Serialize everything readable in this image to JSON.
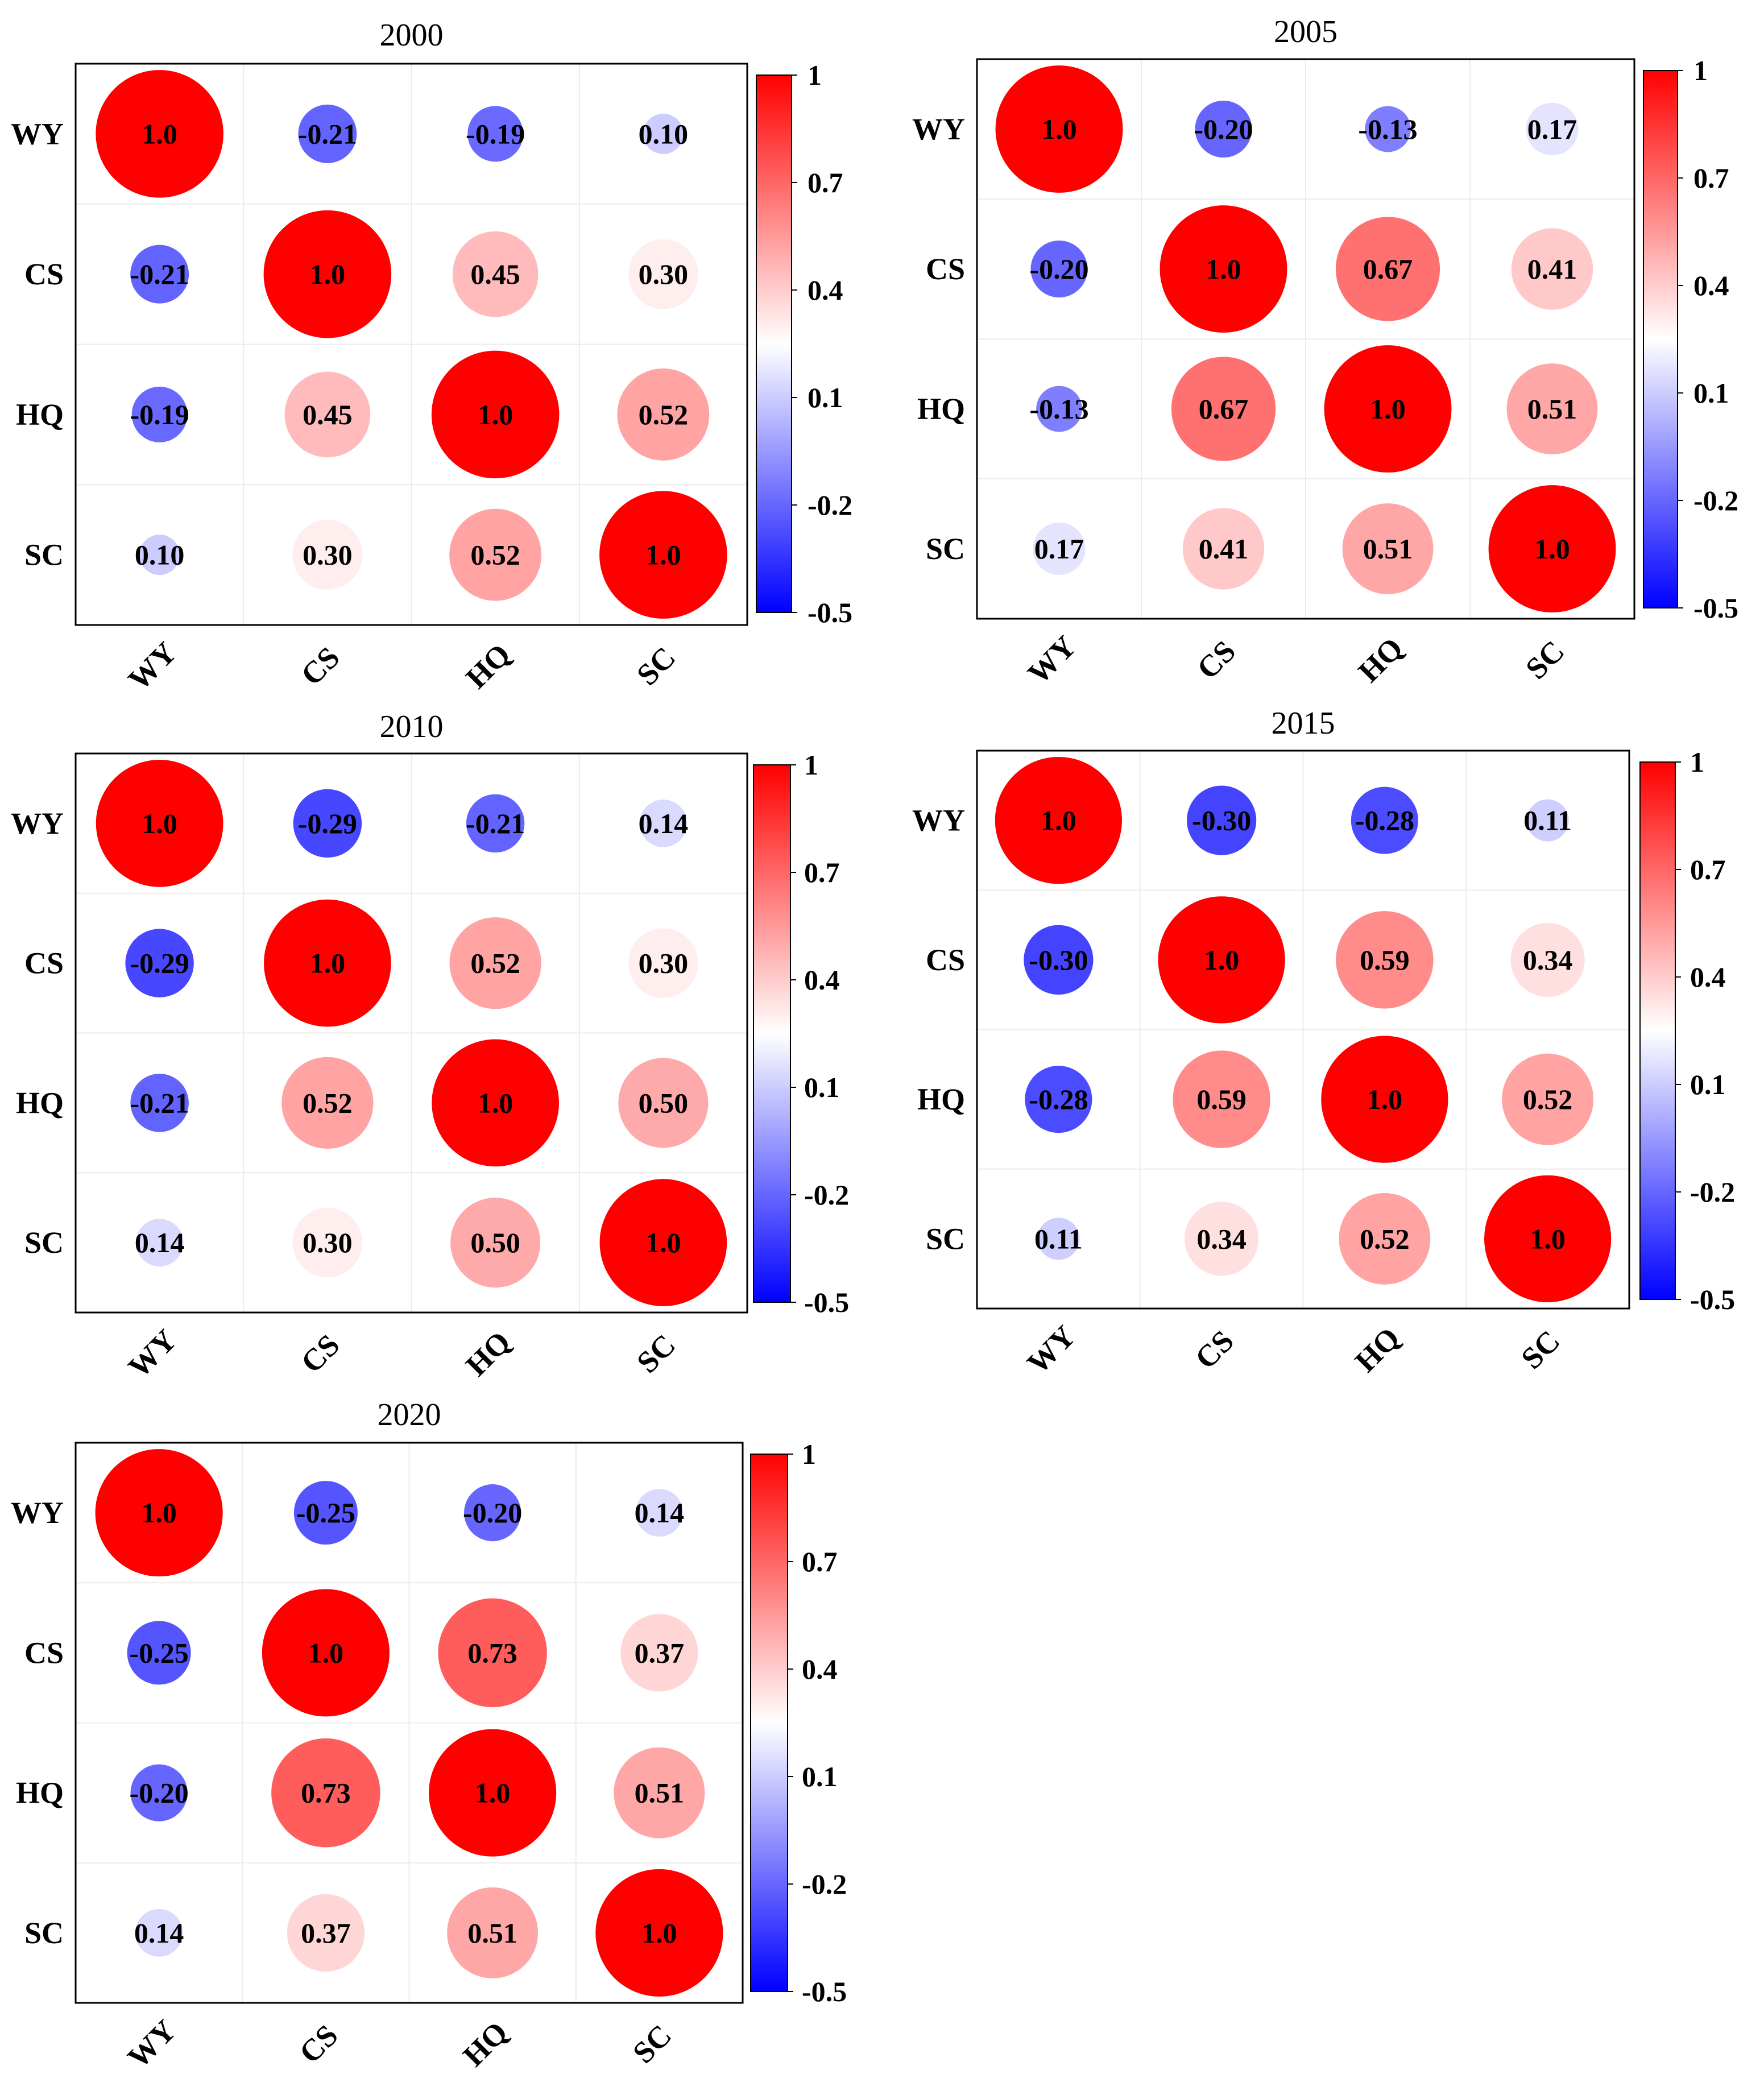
{
  "variables": [
    "WY",
    "CS",
    "HQ",
    "SC"
  ],
  "colorbar": {
    "range": [
      -0.5,
      1
    ],
    "ticks": [
      "1",
      "0.7",
      "0.4",
      "0.1",
      "-0.2",
      "-0.5"
    ],
    "colors": {
      "low": "#0000ff",
      "mid": "#ffffff",
      "high": "#ff0000"
    }
  },
  "chart_data": [
    {
      "type": "heatmap",
      "title": "2000",
      "rows": [
        "WY",
        "CS",
        "HQ",
        "SC"
      ],
      "columns": [
        "WY",
        "CS",
        "HQ",
        "SC"
      ],
      "values": [
        [
          1.0,
          -0.21,
          -0.19,
          0.1
        ],
        [
          -0.21,
          1.0,
          0.45,
          0.3
        ],
        [
          -0.19,
          0.45,
          1.0,
          0.52
        ],
        [
          0.1,
          0.3,
          0.52,
          1.0
        ]
      ],
      "labels": [
        [
          "1.0",
          "-0.21",
          "-0.19",
          "0.10"
        ],
        [
          "-0.21",
          "1.0",
          "0.45",
          "0.30"
        ],
        [
          "-0.19",
          "0.45",
          "1.0",
          "0.52"
        ],
        [
          "0.10",
          "0.30",
          "0.52",
          "1.0"
        ]
      ]
    },
    {
      "type": "heatmap",
      "title": "2005",
      "rows": [
        "WY",
        "CS",
        "HQ",
        "SC"
      ],
      "columns": [
        "WY",
        "CS",
        "HQ",
        "SC"
      ],
      "values": [
        [
          1.0,
          -0.2,
          -0.13,
          0.17
        ],
        [
          -0.2,
          1.0,
          0.67,
          0.41
        ],
        [
          -0.13,
          0.67,
          1.0,
          0.51
        ],
        [
          0.17,
          0.41,
          0.51,
          1.0
        ]
      ],
      "labels": [
        [
          "1.0",
          "-0.20",
          "-0.13",
          "0.17"
        ],
        [
          "-0.20",
          "1.0",
          "0.67",
          "0.41"
        ],
        [
          "-0.13",
          "0.67",
          "1.0",
          "0.51"
        ],
        [
          "0.17",
          "0.41",
          "0.51",
          "1.0"
        ]
      ]
    },
    {
      "type": "heatmap",
      "title": "2010",
      "rows": [
        "WY",
        "CS",
        "HQ",
        "SC"
      ],
      "columns": [
        "WY",
        "CS",
        "HQ",
        "SC"
      ],
      "values": [
        [
          1.0,
          -0.29,
          -0.21,
          0.14
        ],
        [
          -0.29,
          1.0,
          0.52,
          0.3
        ],
        [
          -0.21,
          0.52,
          1.0,
          0.5
        ],
        [
          0.14,
          0.3,
          0.5,
          1.0
        ]
      ],
      "labels": [
        [
          "1.0",
          "-0.29",
          "-0.21",
          "0.14"
        ],
        [
          "-0.29",
          "1.0",
          "0.52",
          "0.30"
        ],
        [
          "-0.21",
          "0.52",
          "1.0",
          "0.50"
        ],
        [
          "0.14",
          "0.30",
          "0.50",
          "1.0"
        ]
      ]
    },
    {
      "type": "heatmap",
      "title": "2015",
      "rows": [
        "WY",
        "CS",
        "HQ",
        "SC"
      ],
      "columns": [
        "WY",
        "CS",
        "HQ",
        "SC"
      ],
      "values": [
        [
          1.0,
          -0.3,
          -0.28,
          0.11
        ],
        [
          -0.3,
          1.0,
          0.59,
          0.34
        ],
        [
          -0.28,
          0.59,
          1.0,
          0.52
        ],
        [
          0.11,
          0.34,
          0.52,
          1.0
        ]
      ],
      "labels": [
        [
          "1.0",
          "-0.30",
          "-0.28",
          "0.11"
        ],
        [
          "-0.30",
          "1.0",
          "0.59",
          "0.34"
        ],
        [
          "-0.28",
          "0.59",
          "1.0",
          "0.52"
        ],
        [
          "0.11",
          "0.34",
          "0.52",
          "1.0"
        ]
      ]
    },
    {
      "type": "heatmap",
      "title": "2020",
      "rows": [
        "WY",
        "CS",
        "HQ",
        "SC"
      ],
      "columns": [
        "WY",
        "CS",
        "HQ",
        "SC"
      ],
      "values": [
        [
          1.0,
          -0.25,
          -0.2,
          0.14
        ],
        [
          -0.25,
          1.0,
          0.73,
          0.37
        ],
        [
          -0.2,
          0.73,
          1.0,
          0.51
        ],
        [
          0.14,
          0.37,
          0.51,
          1.0
        ]
      ],
      "labels": [
        [
          "1.0",
          "-0.25",
          "-0.20",
          "0.14"
        ],
        [
          "-0.25",
          "1.0",
          "0.73",
          "0.37"
        ],
        [
          "-0.20",
          "0.73",
          "1.0",
          "0.51"
        ],
        [
          "0.14",
          "0.37",
          "0.51",
          "1.0"
        ]
      ]
    }
  ]
}
